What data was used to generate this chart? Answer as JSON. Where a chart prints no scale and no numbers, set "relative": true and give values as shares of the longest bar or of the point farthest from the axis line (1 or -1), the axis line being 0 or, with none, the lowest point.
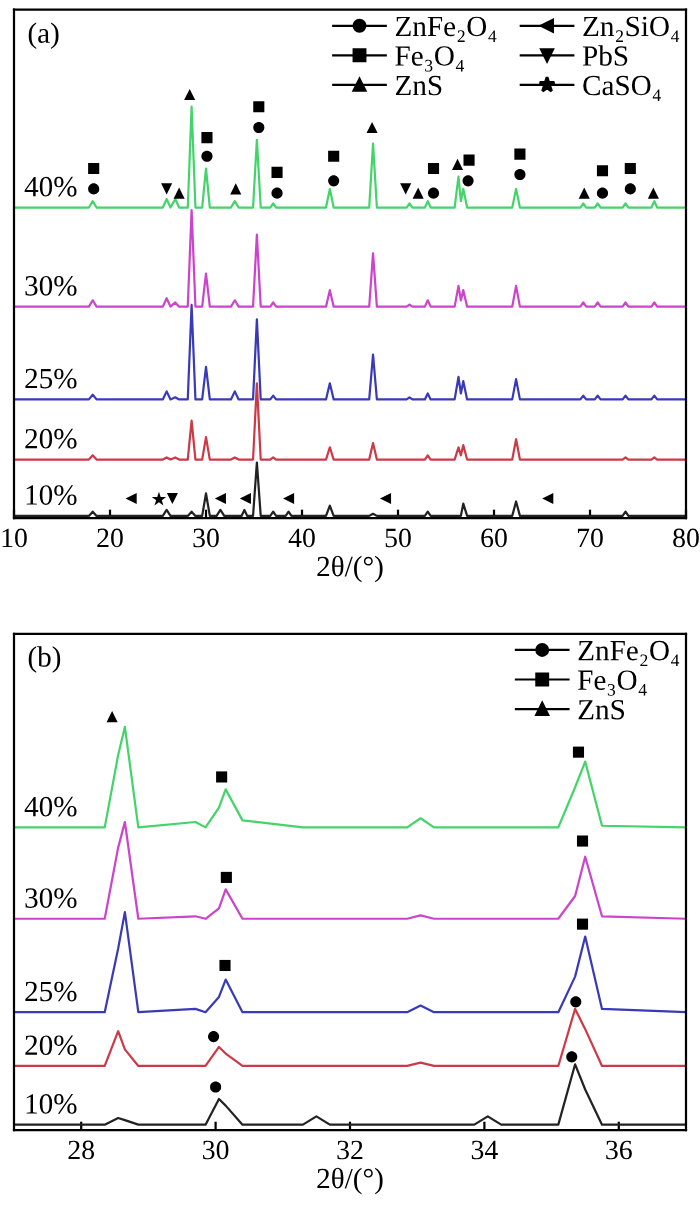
{
  "chart_data": [
    {
      "type": "line",
      "relative": true,
      "xlabel": "2θ/(°)",
      "xlim": [
        10,
        80
      ],
      "xticks": [
        10,
        20,
        30,
        40,
        50,
        60,
        70,
        80
      ],
      "tick_labels": "x",
      "legend": "top right",
      "x": [
        10,
        17.8,
        18.2,
        18.6,
        25.5,
        25.9,
        26.3,
        26.8,
        27.2,
        28.1,
        28.5,
        28.9,
        29.6,
        30.0,
        30.4,
        31.1,
        31.5,
        31.9,
        32.6,
        33.0,
        33.4,
        33.7,
        34.0,
        34.3,
        34.9,
        35.3,
        35.7,
        36.7,
        37.0,
        37.3,
        38.3,
        38.6,
        38.9,
        42.5,
        42.9,
        43.3,
        47.0,
        47.4,
        47.8,
        50.9,
        51.2,
        51.5,
        52.8,
        53.1,
        53.4,
        55.9,
        56.3,
        56.55,
        56.8,
        57.2,
        61.9,
        62.3,
        62.7,
        69.0,
        69.3,
        69.6,
        70.5,
        70.8,
        71.1,
        73.4,
        73.7,
        74.0,
        76.4,
        76.7,
        77.0,
        80
      ],
      "series": [
        {
          "name": "40%",
          "color": "#44d46a",
          "values": [
            0.733,
            0.733,
            0.748,
            0.733,
            0.733,
            0.753,
            0.733,
            0.753,
            0.733,
            0.733,
            0.971,
            0.733,
            0.733,
            0.825,
            0.733,
            0.733,
            0.733,
            0.733,
            0.733,
            0.748,
            0.733,
            0.733,
            0.733,
            0.733,
            0.733,
            0.893,
            0.733,
            0.733,
            0.743,
            0.733,
            0.733,
            0.733,
            0.733,
            0.733,
            0.777,
            0.733,
            0.733,
            0.884,
            0.733,
            0.733,
            0.743,
            0.733,
            0.733,
            0.748,
            0.733,
            0.733,
            0.806,
            0.748,
            0.777,
            0.733,
            0.733,
            0.777,
            0.733,
            0.733,
            0.743,
            0.733,
            0.733,
            0.743,
            0.733,
            0.733,
            0.743,
            0.733,
            0.733,
            0.748,
            0.733,
            0.733
          ]
        },
        {
          "name": "30%",
          "color": "#cc44cc",
          "values": [
            0.499,
            0.499,
            0.514,
            0.499,
            0.499,
            0.519,
            0.499,
            0.509,
            0.499,
            0.499,
            0.727,
            0.499,
            0.499,
            0.577,
            0.499,
            0.499,
            0.499,
            0.499,
            0.499,
            0.514,
            0.499,
            0.499,
            0.499,
            0.499,
            0.499,
            0.669,
            0.499,
            0.499,
            0.509,
            0.499,
            0.499,
            0.499,
            0.499,
            0.499,
            0.538,
            0.499,
            0.499,
            0.625,
            0.499,
            0.499,
            0.504,
            0.499,
            0.499,
            0.514,
            0.499,
            0.499,
            0.548,
            0.514,
            0.538,
            0.499,
            0.499,
            0.548,
            0.499,
            0.499,
            0.509,
            0.499,
            0.499,
            0.509,
            0.499,
            0.499,
            0.509,
            0.499,
            0.499,
            0.509,
            0.499,
            0.499
          ]
        },
        {
          "name": "25%",
          "color": "#3a3ab8",
          "values": [
            0.28,
            0.28,
            0.291,
            0.28,
            0.28,
            0.299,
            0.28,
            0.285,
            0.28,
            0.28,
            0.503,
            0.28,
            0.28,
            0.357,
            0.28,
            0.28,
            0.28,
            0.28,
            0.28,
            0.299,
            0.28,
            0.28,
            0.28,
            0.28,
            0.28,
            0.469,
            0.28,
            0.28,
            0.289,
            0.28,
            0.28,
            0.28,
            0.28,
            0.28,
            0.318,
            0.28,
            0.28,
            0.386,
            0.28,
            0.28,
            0.285,
            0.28,
            0.28,
            0.294,
            0.28,
            0.28,
            0.333,
            0.294,
            0.323,
            0.28,
            0.28,
            0.328,
            0.28,
            0.28,
            0.289,
            0.28,
            0.28,
            0.289,
            0.28,
            0.28,
            0.289,
            0.28,
            0.28,
            0.289,
            0.28,
            0.28
          ]
        },
        {
          "name": "20%",
          "color": "#cc3a48",
          "values": [
            0.138,
            0.138,
            0.148,
            0.138,
            0.138,
            0.143,
            0.138,
            0.143,
            0.138,
            0.138,
            0.23,
            0.138,
            0.138,
            0.191,
            0.138,
            0.138,
            0.138,
            0.138,
            0.138,
            0.143,
            0.138,
            0.138,
            0.138,
            0.138,
            0.138,
            0.318,
            0.138,
            0.138,
            0.143,
            0.138,
            0.138,
            0.138,
            0.138,
            0.138,
            0.167,
            0.138,
            0.138,
            0.177,
            0.138,
            0.138,
            0.138,
            0.138,
            0.138,
            0.148,
            0.138,
            0.138,
            0.167,
            0.148,
            0.172,
            0.138,
            0.138,
            0.186,
            0.138,
            0.138,
            0.138,
            0.138,
            0.138,
            0.138,
            0.138,
            0.138,
            0.143,
            0.138,
            0.138,
            0.143,
            0.138,
            0.138
          ]
        },
        {
          "name": "10%",
          "color": "#222222",
          "values": [
            0.005,
            0.005,
            0.015,
            0.005,
            0.005,
            0.019,
            0.005,
            0.005,
            0.005,
            0.005,
            0.015,
            0.005,
            0.005,
            0.058,
            0.005,
            0.005,
            0.019,
            0.005,
            0.005,
            0.005,
            0.005,
            0.005,
            0.019,
            0.005,
            0.005,
            0.131,
            0.005,
            0.005,
            0.015,
            0.005,
            0.005,
            0.015,
            0.005,
            0.005,
            0.029,
            0.005,
            0.005,
            0.01,
            0.005,
            0.005,
            0.005,
            0.005,
            0.005,
            0.015,
            0.005,
            0.005,
            0.005,
            0.005,
            0.034,
            0.005,
            0.005,
            0.039,
            0.005,
            0.005,
            0.005,
            0.005,
            0.005,
            0.005,
            0.005,
            0.005,
            0.015,
            0.005,
            0.005,
            0.005,
            0.005,
            0.005
          ]
        },
        {
          "name": "ZnFe₂O₄",
          "type": "scatter",
          "marker": "circle",
          "color": "#000000",
          "x": [
            18.3,
            30.1,
            35.5,
            37.4,
            43.3,
            53.7,
            57.3,
            62.7,
            71.3,
            74.2
          ],
          "values": [
            0.777,
            0.854,
            0.922,
            0.767,
            0.796,
            0.767,
            0.796,
            0.811,
            0.767,
            0.777
          ]
        },
        {
          "name": "Fe₃O₄",
          "type": "scatter",
          "marker": "square",
          "color": "#000000",
          "x": [
            18.3,
            30.1,
            35.5,
            37.4,
            43.3,
            53.7,
            57.4,
            62.7,
            71.3,
            74.2
          ],
          "values": [
            0.825,
            0.898,
            0.971,
            0.816,
            0.854,
            0.825,
            0.845,
            0.859,
            0.82,
            0.825
          ]
        },
        {
          "name": "ZnS",
          "type": "scatter",
          "marker": "triangle",
          "color": "#000000",
          "x": [
            28.3,
            27.2,
            33.1,
            47.3,
            52.1,
            56.2,
            69.4,
            76.6
          ],
          "values": [
            1.0,
            0.767,
            0.777,
            0.922,
            0.767,
            0.835,
            0.767,
            0.767
          ]
        },
        {
          "name": "Zn₂SiO₄",
          "type": "scatter",
          "marker": "triangle-left",
          "color": "#000000",
          "x": [
            22.2,
            31.5,
            34.1,
            38.6,
            48.7,
            65.6
          ],
          "values": [
            0.046,
            0.046,
            0.046,
            0.046,
            0.046,
            0.046
          ]
        },
        {
          "name": "PbS",
          "type": "scatter",
          "marker": "triangle-down",
          "color": "#000000",
          "x": [
            25.9,
            50.8,
            26.5
          ],
          "values": [
            0.777,
            0.777,
            0.046
          ]
        },
        {
          "name": "CaSO₄",
          "type": "scatter",
          "marker": "star",
          "color": "#000000",
          "x": [
            25.1
          ],
          "values": [
            0.044
          ]
        }
      ],
      "annotations": [
        "(a)"
      ]
    },
    {
      "type": "line",
      "relative": true,
      "xlabel": "2θ/(°)",
      "xlim": [
        27,
        37
      ],
      "xticks": [
        28,
        30,
        32,
        34,
        36
      ],
      "tick_labels": "x",
      "legend": "top right",
      "x": [
        27,
        28.35,
        28.55,
        28.65,
        28.85,
        29.7,
        29.85,
        30.05,
        30.15,
        30.4,
        31.3,
        31.5,
        31.7,
        32.85,
        33.05,
        33.25,
        33.85,
        34.05,
        34.25,
        35.1,
        35.35,
        35.5,
        35.75,
        37
      ],
      "series": [
        {
          "name": "40%",
          "color": "#44d46a",
          "values": [
            0.732,
            0.732,
            0.907,
            0.975,
            0.732,
            0.745,
            0.732,
            0.78,
            0.824,
            0.749,
            0.732,
            0.732,
            0.732,
            0.732,
            0.754,
            0.732,
            0.732,
            0.732,
            0.732,
            0.732,
            0.829,
            0.891,
            0.736,
            0.732
          ]
        },
        {
          "name": "30%",
          "color": "#cc44cc",
          "values": [
            0.511,
            0.511,
            0.683,
            0.745,
            0.511,
            0.517,
            0.511,
            0.536,
            0.582,
            0.511,
            0.511,
            0.511,
            0.511,
            0.511,
            0.519,
            0.511,
            0.511,
            0.511,
            0.511,
            0.511,
            0.566,
            0.661,
            0.517,
            0.511
          ]
        },
        {
          "name": "25%",
          "color": "#3a3ab8",
          "values": [
            0.285,
            0.285,
            0.439,
            0.527,
            0.285,
            0.293,
            0.285,
            0.322,
            0.364,
            0.285,
            0.285,
            0.285,
            0.285,
            0.285,
            0.301,
            0.285,
            0.285,
            0.285,
            0.285,
            0.285,
            0.371,
            0.468,
            0.293,
            0.285
          ]
        },
        {
          "name": "20%",
          "color": "#cc3a48",
          "values": [
            0.155,
            0.155,
            0.239,
            0.195,
            0.155,
            0.155,
            0.155,
            0.201,
            0.185,
            0.155,
            0.155,
            0.155,
            0.155,
            0.155,
            0.163,
            0.155,
            0.155,
            0.155,
            0.155,
            0.155,
            0.293,
            0.244,
            0.155,
            0.155
          ]
        },
        {
          "name": "10%",
          "color": "#222222",
          "values": [
            0.013,
            0.013,
            0.029,
            0.024,
            0.013,
            0.013,
            0.013,
            0.075,
            0.059,
            0.013,
            0.013,
            0.033,
            0.013,
            0.013,
            0.013,
            0.013,
            0.013,
            0.033,
            0.013,
            0.013,
            0.159,
            0.098,
            0.013,
            0.013
          ]
        },
        {
          "name": "ZnFe₂O₄",
          "type": "scatter",
          "marker": "circle",
          "color": "#000000",
          "x": [
            29.97,
            35.36,
            30.0,
            35.3
          ],
          "values": [
            0.226,
            0.31,
            0.104,
            0.177
          ]
        },
        {
          "name": "Fe₃O₄",
          "type": "scatter",
          "marker": "square",
          "color": "#000000",
          "x": [
            30.09,
            35.4,
            30.16,
            35.46,
            30.14,
            35.46
          ],
          "values": [
            0.854,
            0.914,
            0.611,
            0.699,
            0.398,
            0.498
          ]
        },
        {
          "name": "ZnS",
          "type": "scatter",
          "marker": "triangle",
          "color": "#000000",
          "x": [
            28.46
          ],
          "values": [
            1.0
          ]
        }
      ],
      "annotations": [
        "(b)"
      ]
    }
  ]
}
